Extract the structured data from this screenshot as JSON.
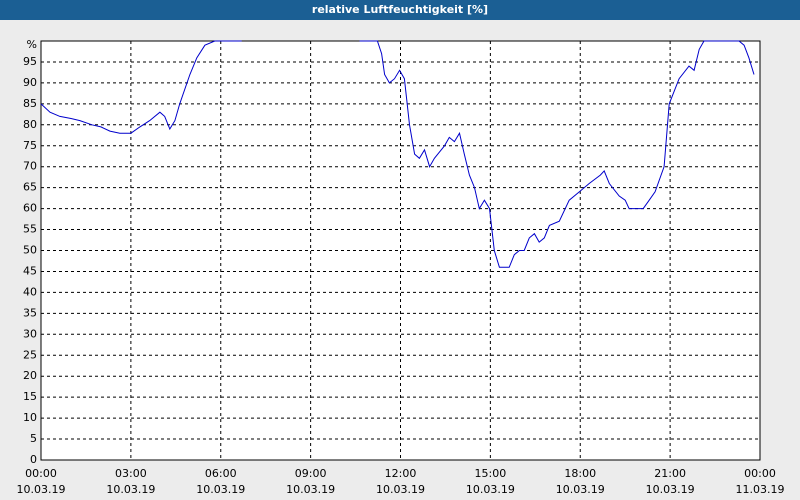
{
  "chart_data": {
    "type": "line",
    "title": "relative Luftfeuchtigkeit [%]",
    "y_unit": "%",
    "x": [
      0,
      0.3,
      0.63,
      1.0,
      1.3,
      1.7,
      2.0,
      2.3,
      2.63,
      3.0,
      3.3,
      3.63,
      3.97,
      4.13,
      4.3,
      4.47,
      4.63,
      4.97,
      5.2,
      5.47,
      5.8,
      6.7,
      8.5,
      10.63,
      11.23,
      11.37,
      11.47,
      11.63,
      11.8,
      11.97,
      12.13,
      12.3,
      12.47,
      12.63,
      12.8,
      12.97,
      13.13,
      13.47,
      13.63,
      13.8,
      13.97,
      14.13,
      14.3,
      14.47,
      14.63,
      14.8,
      14.97,
      15.13,
      15.3,
      15.63,
      15.8,
      15.97,
      16.13,
      16.3,
      16.47,
      16.63,
      16.8,
      16.97,
      17.3,
      17.63,
      17.97,
      18.3,
      18.67,
      18.8,
      18.97,
      19.3,
      19.5,
      19.63,
      19.8,
      20.1,
      20.3,
      20.5,
      20.8,
      20.97,
      21.3,
      21.63,
      21.8,
      21.97,
      22.13,
      23.3,
      23.47,
      23.63,
      23.8
    ],
    "values": [
      85,
      83,
      82,
      81.5,
      81,
      80,
      79.5,
      78.5,
      78,
      78,
      79.5,
      81,
      83,
      82,
      79,
      81,
      85,
      92,
      96,
      99,
      100,
      100,
      null,
      100,
      100,
      97,
      92,
      90,
      91,
      93,
      91,
      80,
      73,
      72,
      74,
      70,
      72,
      75,
      77,
      76,
      78,
      73,
      68,
      65,
      60,
      62,
      60,
      50,
      46,
      46,
      49,
      50,
      50,
      53,
      54,
      52,
      53,
      56,
      57,
      62,
      64,
      66,
      68,
      69,
      66,
      63,
      62,
      60,
      60,
      60,
      62,
      64,
      70,
      85,
      91,
      94,
      93,
      98,
      100,
      100,
      99,
      96,
      92
    ],
    "color": "#0000cc",
    "xlim": [
      0,
      24
    ],
    "xticks": [
      {
        "value": 0,
        "label": "00:00",
        "sublabel": "10.03.19"
      },
      {
        "value": 3,
        "label": "03:00",
        "sublabel": "10.03.19"
      },
      {
        "value": 6,
        "label": "06:00",
        "sublabel": "10.03.19"
      },
      {
        "value": 9,
        "label": "09:00",
        "sublabel": "10.03.19"
      },
      {
        "value": 12,
        "label": "12:00",
        "sublabel": "10.03.19"
      },
      {
        "value": 15,
        "label": "15:00",
        "sublabel": "10.03.19"
      },
      {
        "value": 18,
        "label": "18:00",
        "sublabel": "10.03.19"
      },
      {
        "value": 21,
        "label": "21:00",
        "sublabel": "10.03.19"
      },
      {
        "value": 24,
        "label": "00:00",
        "sublabel": "11.03.19"
      }
    ],
    "ylim": [
      0,
      100
    ],
    "yticks": [
      0,
      5,
      10,
      15,
      20,
      25,
      30,
      35,
      40,
      45,
      50,
      55,
      60,
      65,
      70,
      75,
      80,
      85,
      90,
      95
    ],
    "grid": true
  }
}
